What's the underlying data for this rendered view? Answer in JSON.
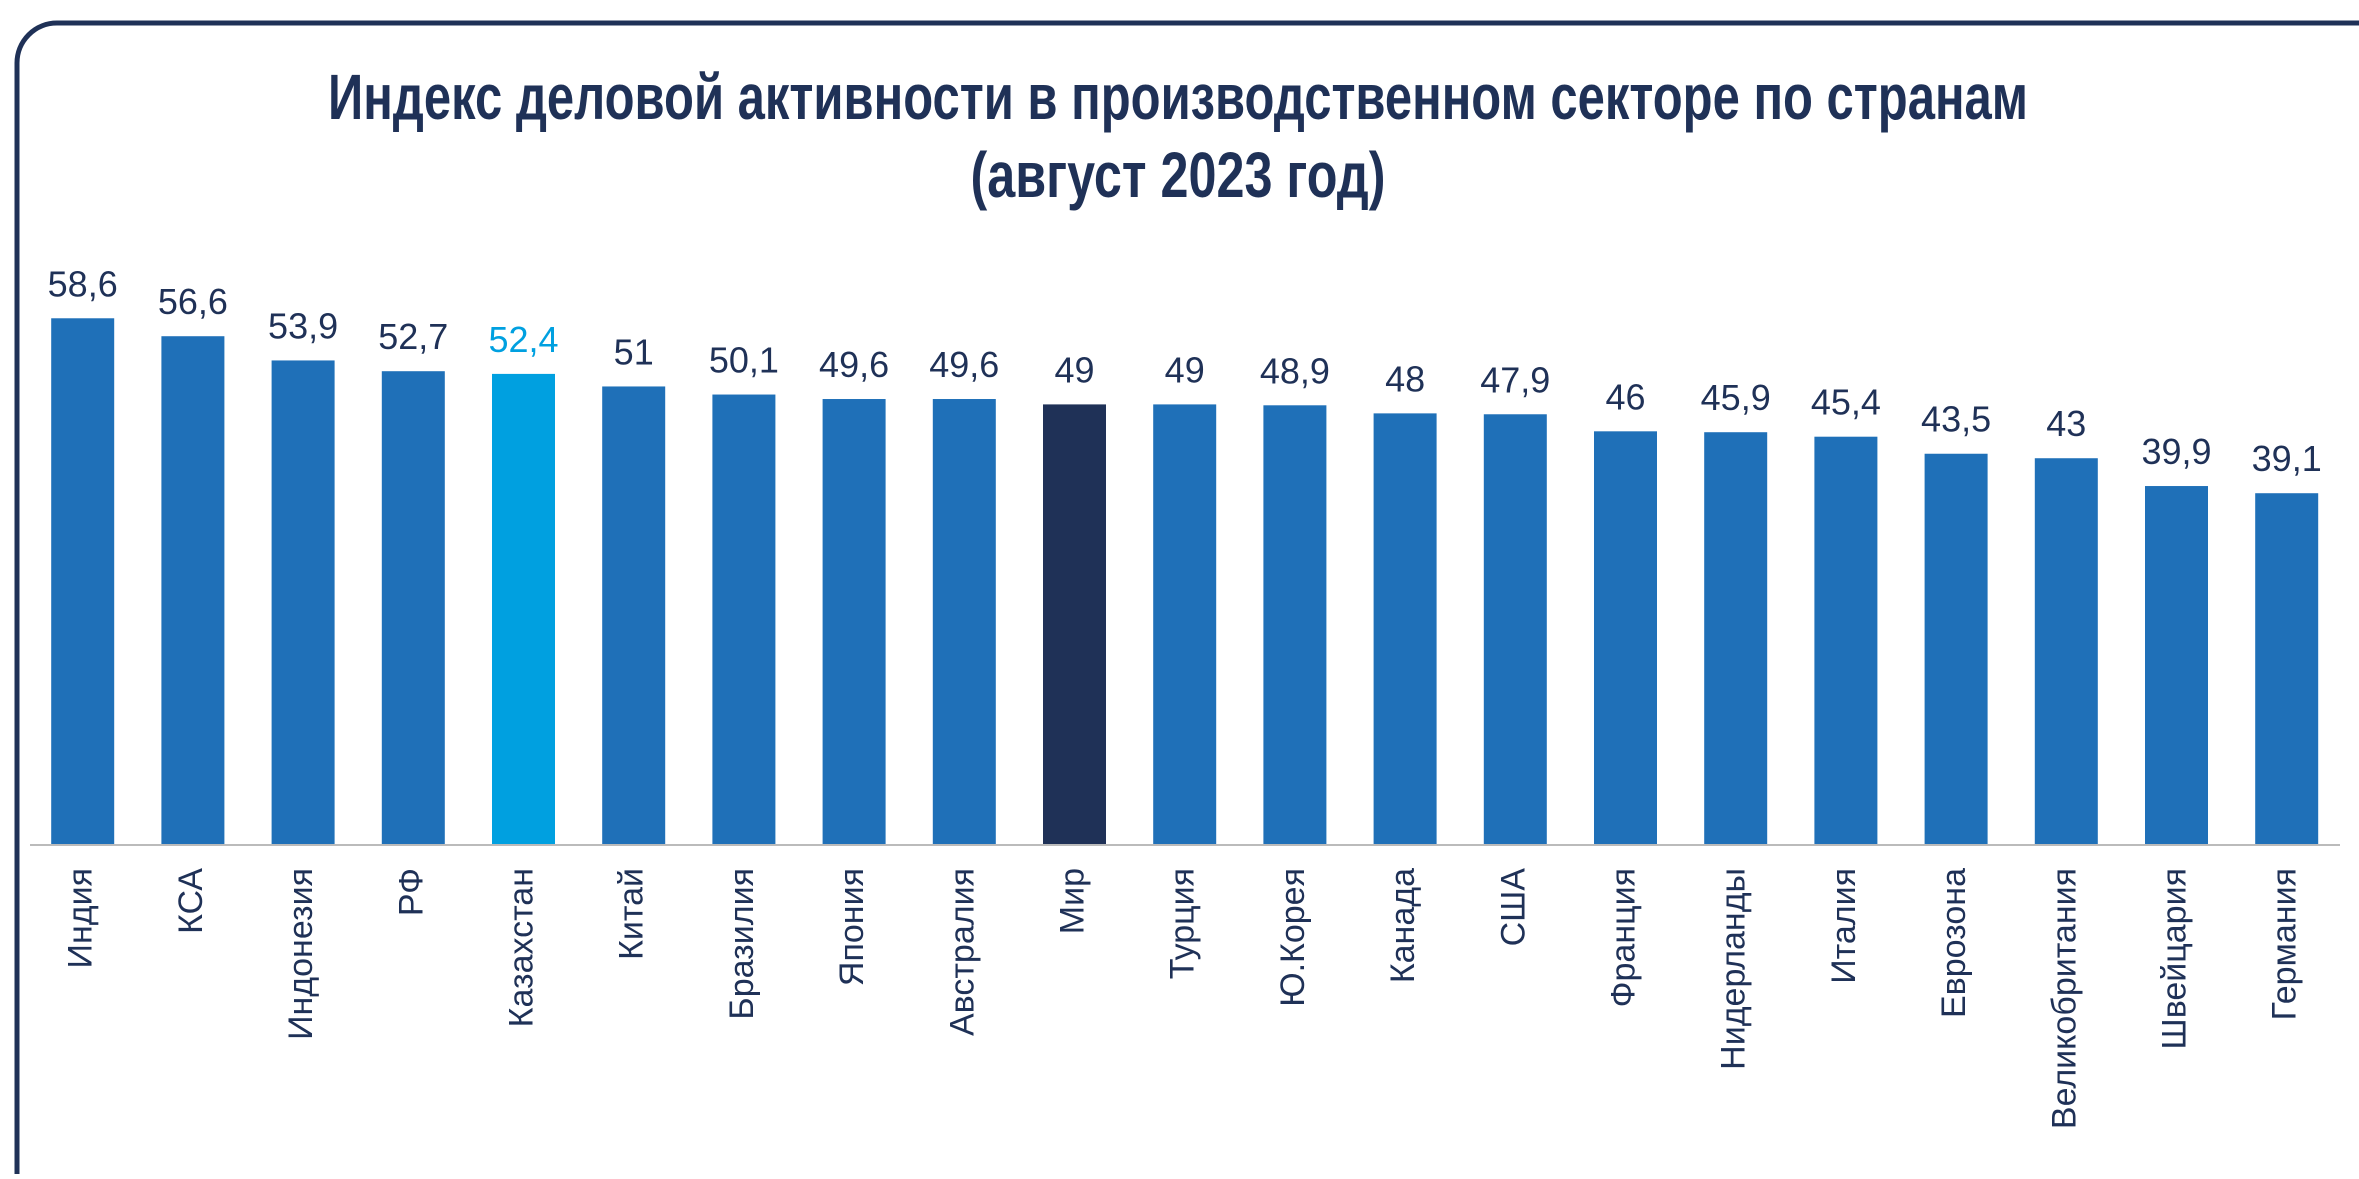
{
  "chart_data": {
    "type": "bar",
    "title": [
      "Индекс деловой активности в производственном секторе по странам",
      "(август 2023 год)"
    ],
    "categories": [
      "Индия",
      "КСА",
      "Индонезия",
      "РФ",
      "Казахстан",
      "Китай",
      "Бразилия",
      "Япония",
      "Австралия",
      "Мир",
      "Турция",
      "Ю.Корея",
      "Канада",
      "США",
      "Франция",
      "Нидерланды",
      "Италия",
      "Еврозона",
      "Великобритания",
      "Швейцария",
      "Германия"
    ],
    "values": [
      58.6,
      56.6,
      53.9,
      52.7,
      52.4,
      51,
      50.1,
      49.6,
      49.6,
      49,
      49,
      48.9,
      48,
      47.9,
      46,
      45.9,
      45.4,
      43.5,
      43,
      39.9,
      39.1
    ],
    "value_labels": [
      "58,6",
      "56,6",
      "53,9",
      "52,7",
      "52,4",
      "51",
      "50,1",
      "49,6",
      "49,6",
      "49",
      "49",
      "48,9",
      "48",
      "47,9",
      "46",
      "45,9",
      "45,4",
      "43,5",
      "43",
      "39,9",
      "39,1"
    ],
    "colors": [
      "#1f70b8",
      "#1f70b8",
      "#1f70b8",
      "#1f70b8",
      "#00a0e0",
      "#1f70b8",
      "#1f70b8",
      "#1f70b8",
      "#1f70b8",
      "#1f3157",
      "#1f70b8",
      "#1f70b8",
      "#1f70b8",
      "#1f70b8",
      "#1f70b8",
      "#1f70b8",
      "#1f70b8",
      "#1f70b8",
      "#1f70b8",
      "#1f70b8",
      "#1f70b8"
    ],
    "ylim": [
      0,
      70
    ]
  }
}
